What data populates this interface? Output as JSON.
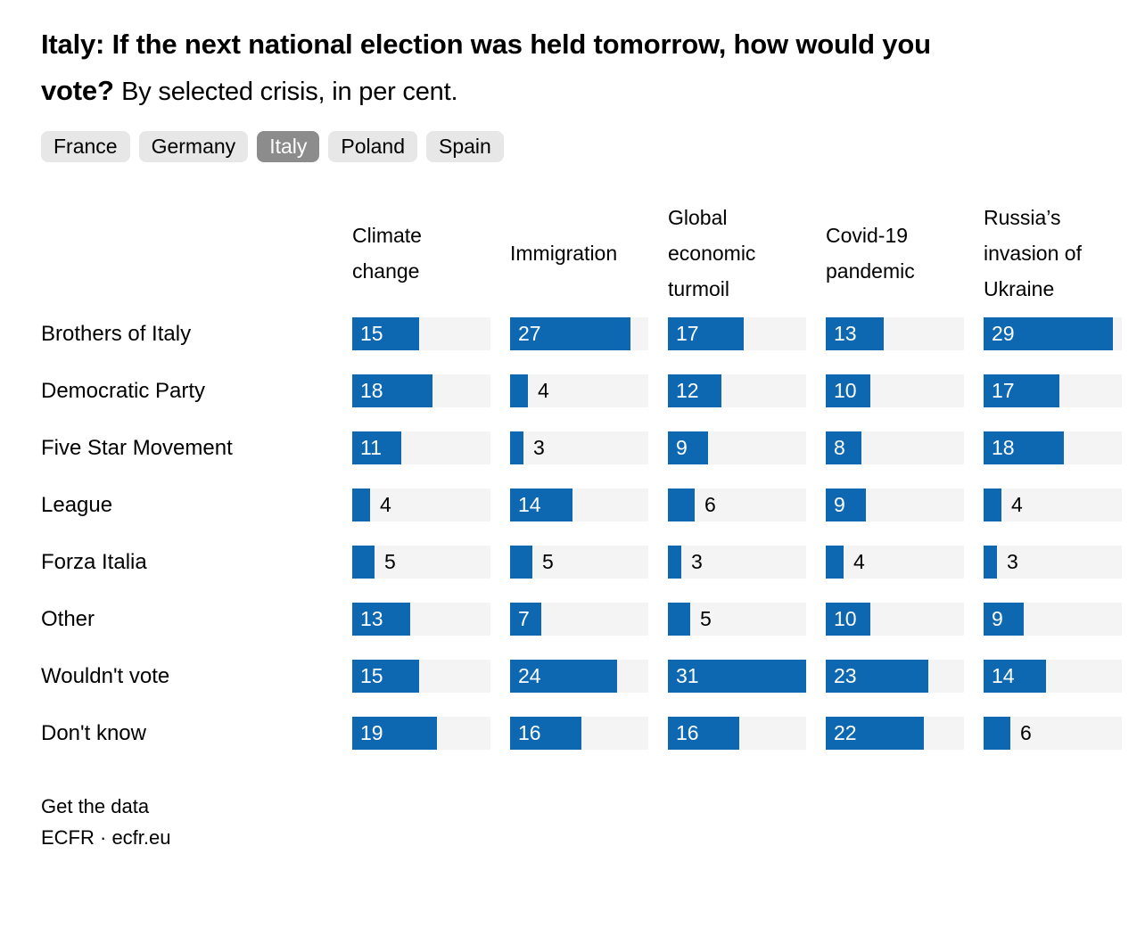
{
  "header": {
    "title_line1": "Italy: If the next national election was held tomorrow, how would you",
    "title_line2_bold": "vote?",
    "subtitle": "By selected crisis, in per cent."
  },
  "tabs": [
    {
      "label": "France",
      "active": false
    },
    {
      "label": "Germany",
      "active": false
    },
    {
      "label": "Italy",
      "active": true
    },
    {
      "label": "Poland",
      "active": false
    },
    {
      "label": "Spain",
      "active": false
    }
  ],
  "chart_data": {
    "type": "bar",
    "title": "Italy: If the next national election was held tomorrow, how would you vote?",
    "subtitle": "By selected crisis, in per cent.",
    "unit": "per cent",
    "columns": [
      "Climate change",
      "Immigration",
      "Global economic turmoil",
      "Covid-19 pandemic",
      "Russia’s invasion of Ukraine"
    ],
    "categories": [
      "Brothers of Italy",
      "Democratic Party",
      "Five Star Movement",
      "League",
      "Forza Italia",
      "Other",
      "Wouldn't vote",
      "Don't know"
    ],
    "series": [
      {
        "name": "Brothers of Italy",
        "values": [
          15,
          27,
          17,
          13,
          29
        ]
      },
      {
        "name": "Democratic Party",
        "values": [
          18,
          4,
          12,
          10,
          17
        ]
      },
      {
        "name": "Five Star Movement",
        "values": [
          11,
          3,
          9,
          8,
          18
        ]
      },
      {
        "name": "League",
        "values": [
          4,
          14,
          6,
          9,
          4
        ]
      },
      {
        "name": "Forza Italia",
        "values": [
          5,
          5,
          3,
          4,
          3
        ]
      },
      {
        "name": "Other",
        "values": [
          13,
          7,
          5,
          10,
          9
        ]
      },
      {
        "name": "Wouldn't vote",
        "values": [
          15,
          24,
          31,
          23,
          14
        ]
      },
      {
        "name": "Don't know",
        "values": [
          19,
          16,
          16,
          22,
          6
        ]
      }
    ],
    "value_scale_max": 31,
    "inside_label_min": 7,
    "bar_color": "#0e68b1",
    "track_color": "#f4f4f4",
    "grid": false,
    "legend_position": "none"
  },
  "footer": {
    "link_label": "Get the data",
    "source": "ECFR · ecfr.eu"
  }
}
